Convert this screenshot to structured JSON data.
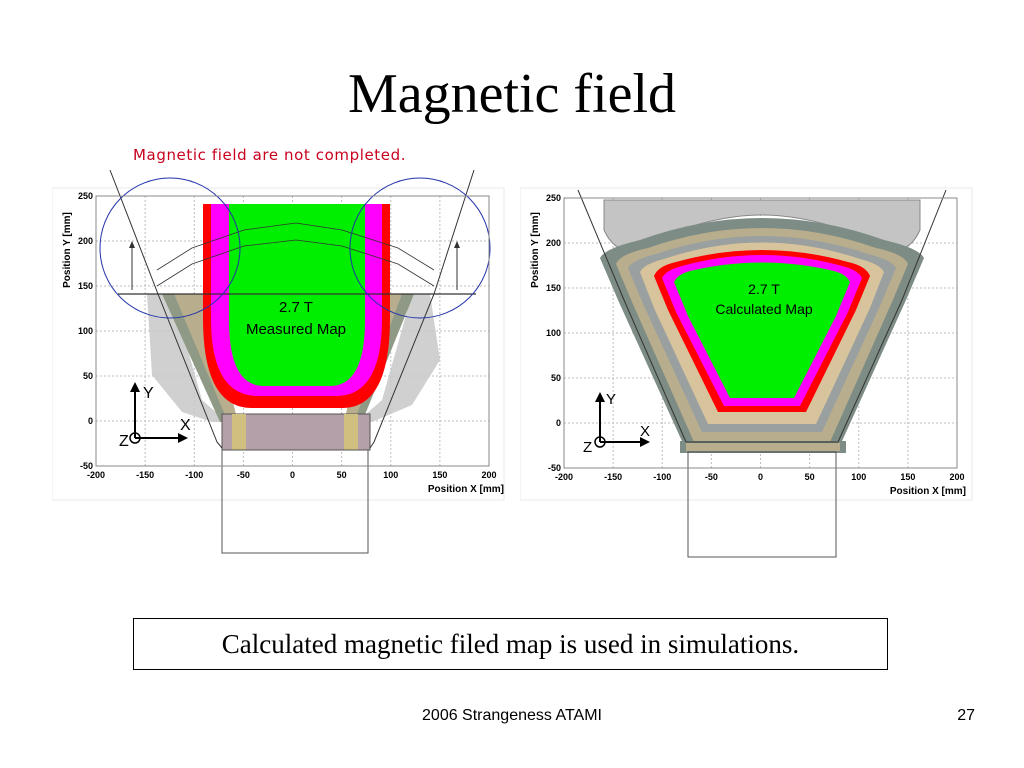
{
  "slide": {
    "title": "Magnetic field",
    "warning": "Magnetic field are not completed.",
    "caption": "Calculated magnetic filed map is used in simulations.",
    "footer": "2006 Strangeness ATAMI",
    "page_number": "27"
  },
  "colors": {
    "warning_red": "#c8001e",
    "field_green": "#00ee00",
    "field_magenta": "#ff00ff",
    "field_red": "#ff0000",
    "circle_blue": "#2233aa"
  },
  "chart_data": [
    {
      "type": "heatmap",
      "panel": "left",
      "map_label_line1": "2.7 T",
      "map_label_line2": "Measured Map",
      "xlabel": "Position X [mm]",
      "ylabel": "Position Y [mm]",
      "xlim": [
        -200,
        200
      ],
      "ylim": [
        -50,
        250
      ],
      "xticks": [
        "-200",
        "-150",
        "-100",
        "-50",
        "0",
        "50",
        "100",
        "150",
        "200"
      ],
      "yticks": [
        "250",
        "200",
        "150",
        "100",
        "50",
        "0",
        "-50"
      ],
      "axis_labels": [
        "Y",
        "X",
        "Z"
      ],
      "grid": true,
      "field_levels": [
        "2.7 T"
      ]
    },
    {
      "type": "heatmap",
      "panel": "right",
      "map_label_line1": "2.7 T",
      "map_label_line2": "Calculated Map",
      "xlabel": "Position X [mm]",
      "ylabel": "Position Y [mm]",
      "xlim": [
        -200,
        200
      ],
      "ylim": [
        -50,
        250
      ],
      "xticks": [
        "-200",
        "-150",
        "-100",
        "-50",
        "0",
        "50",
        "100",
        "150",
        "200"
      ],
      "yticks": [
        "250",
        "200",
        "150",
        "100",
        "50",
        "0",
        "-50"
      ],
      "axis_labels": [
        "Y",
        "X",
        "Z"
      ],
      "grid": true,
      "field_levels": [
        "2.7 T"
      ]
    }
  ]
}
